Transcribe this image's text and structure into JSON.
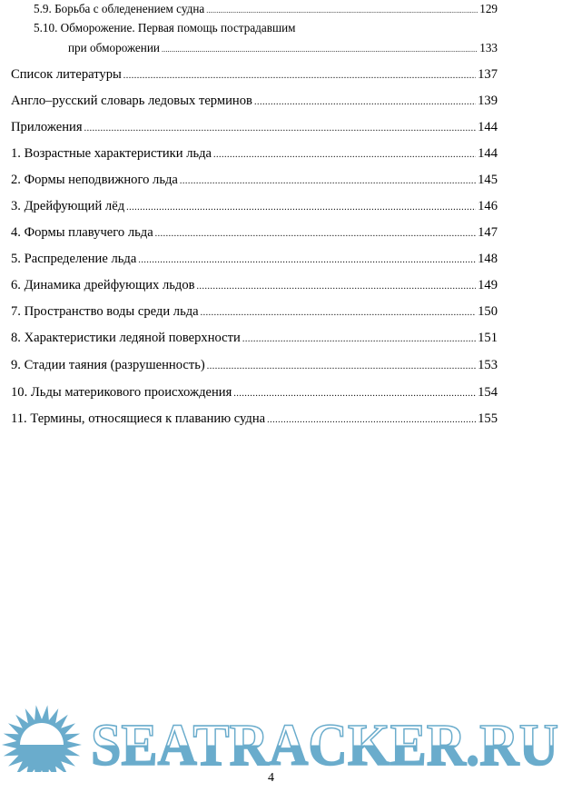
{
  "toc": [
    {
      "title": "5.9. Борьба с обледенением судна",
      "page": "129",
      "level": 2
    },
    {
      "title": "5.10. Обморожение. Первая помощь пострадавшим",
      "continuation": "при обморожении",
      "page": "133",
      "level": 2
    },
    {
      "title": "Список литературы",
      "page": "137",
      "level": 1
    },
    {
      "title": "Англо–русский словарь ледовых терминов",
      "page": "139",
      "level": 1
    },
    {
      "title": "Приложения",
      "page": "144",
      "level": 1
    },
    {
      "title": "1. Возрастные характеристики льда",
      "page": "144",
      "level": 1
    },
    {
      "title": "2. Формы неподвижного льда",
      "page": "145",
      "level": 1
    },
    {
      "title": "3. Дрейфующий лёд",
      "page": "146",
      "level": 1
    },
    {
      "title": "4. Формы плавучего льда",
      "page": "147",
      "level": 1
    },
    {
      "title": "5. Распределение льда",
      "page": "148",
      "level": 1
    },
    {
      "title": "6. Динамика дрейфующих льдов",
      "page": "149",
      "level": 1
    },
    {
      "title": "7. Пространство воды среди льда",
      "page": "150",
      "level": 1
    },
    {
      "title": "8. Характеристики ледяной поверхности",
      "page": "151",
      "level": 1
    },
    {
      "title": "9. Стадии таяния (разрушенность)",
      "page": "153",
      "level": 1
    },
    {
      "title": "10. Льды материкового происхождения",
      "page": "154",
      "level": 1
    },
    {
      "title": "11. Термины, относящиеся к плаванию судна",
      "page": "155",
      "level": 1
    }
  ],
  "page_number": "4",
  "watermark": {
    "text": "SEATRACKER.RU",
    "color": "#6aaccc",
    "icon": "sun-over-sea-logo"
  }
}
